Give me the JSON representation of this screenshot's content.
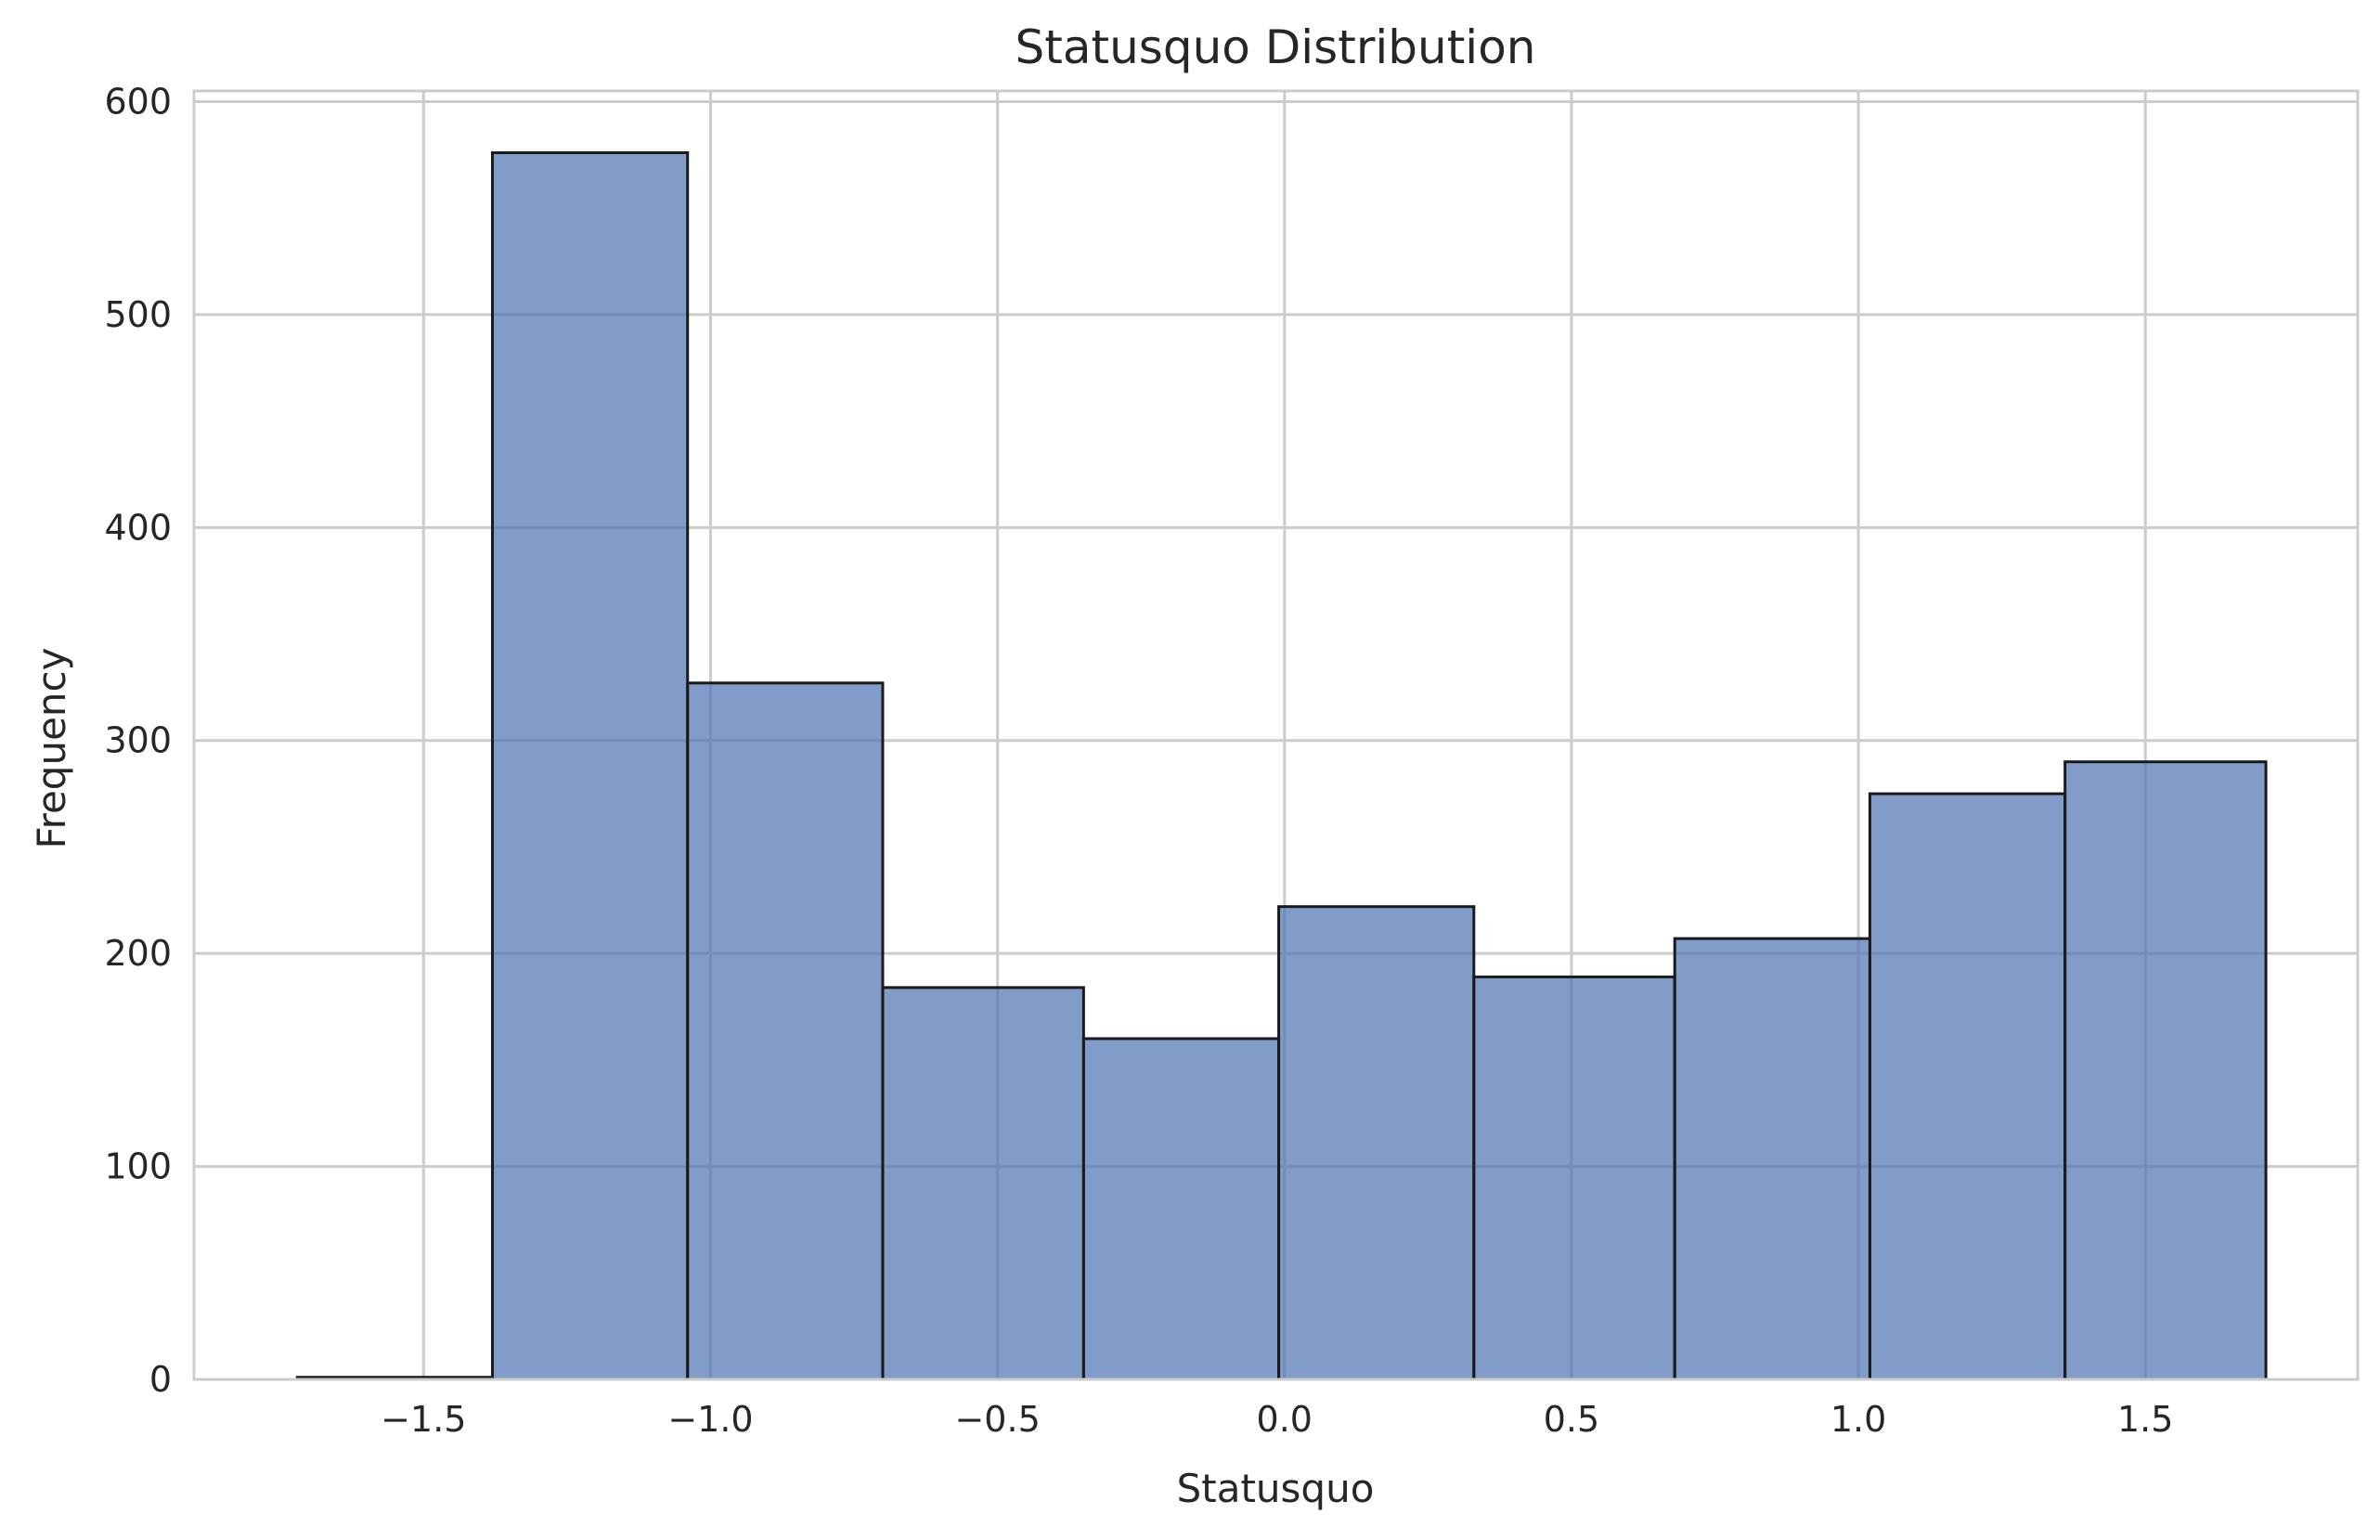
{
  "chart_data": {
    "type": "bar",
    "title": "Statusquo Distribution",
    "xlabel": "Statusquo",
    "ylabel": "Frequency",
    "xlim": [
      -1.9,
      1.87
    ],
    "ylim": [
      0,
      605
    ],
    "xticks": [
      -1.5,
      -1.0,
      -0.5,
      0.0,
      0.5,
      1.0,
      1.5
    ],
    "xtick_labels": [
      "−1.5",
      "−1.0",
      "−0.5",
      "0.0",
      "0.5",
      "1.0",
      "1.5"
    ],
    "yticks": [
      0,
      100,
      200,
      300,
      400,
      500,
      600
    ],
    "ytick_labels": [
      "0",
      "100",
      "200",
      "300",
      "400",
      "500",
      "600"
    ],
    "grid": true,
    "bins": [
      {
        "x0": -1.72,
        "x1": -1.38,
        "value": 1
      },
      {
        "x0": -1.38,
        "x1": -1.04,
        "value": 576
      },
      {
        "x0": -1.04,
        "x1": -0.7,
        "value": 327
      },
      {
        "x0": -0.7,
        "x1": -0.35,
        "value": 184
      },
      {
        "x0": -0.35,
        "x1": -0.01,
        "value": 160
      },
      {
        "x0": -0.01,
        "x1": 0.33,
        "value": 222
      },
      {
        "x0": 0.33,
        "x1": 0.68,
        "value": 189
      },
      {
        "x0": 0.68,
        "x1": 1.02,
        "value": 207
      },
      {
        "x0": 1.02,
        "x1": 1.36,
        "value": 275
      },
      {
        "x0": 1.36,
        "x1": 1.71,
        "value": 290
      }
    ],
    "colors": {
      "bar_fill": "#4c72b0",
      "bar_edge": "#1a1a1a",
      "grid": "#cccccc",
      "frame": "#cccccc",
      "text": "#262626"
    }
  }
}
